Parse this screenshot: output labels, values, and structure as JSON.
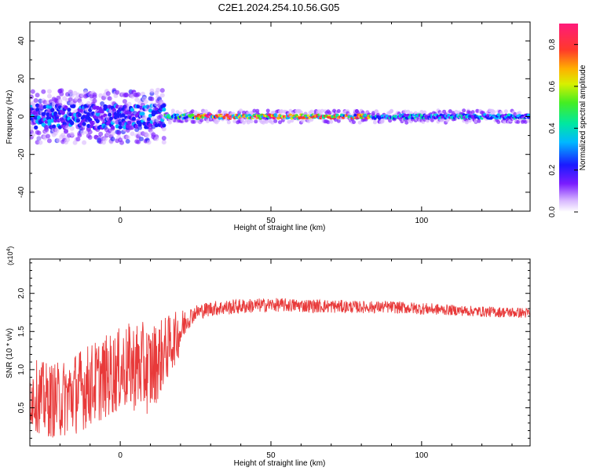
{
  "title": "C2E1.2024.254.10.56.G05",
  "chart_data": [
    {
      "type": "heatmap",
      "xlabel": "Height of straight line (km)",
      "ylabel": "Frequency (Hz)",
      "xlim": [
        -30,
        136
      ],
      "ylim": [
        -50,
        50
      ],
      "xticks": [
        0,
        50,
        100
      ],
      "yticks": [
        -40,
        -20,
        0,
        20,
        40
      ],
      "colorbar": {
        "label": "Normalized spectral amplitude",
        "range": [
          0,
          0.9
        ],
        "ticks": [
          0.0,
          0.2,
          0.4,
          0.6,
          0.8
        ]
      },
      "ridge": {
        "center_frequency": 0,
        "segments": [
          {
            "x": [
              -30,
              15
            ],
            "half_width": 3,
            "peak_amplitude": 0.4
          },
          {
            "x": [
              15,
              25
            ],
            "half_width": 2,
            "peak_amplitude": 0.6
          },
          {
            "x": [
              25,
              84
            ],
            "half_width": 2,
            "peak_amplitude": 0.9
          },
          {
            "x": [
              84,
              136
            ],
            "half_width": 2,
            "peak_amplitude": 0.45
          }
        ]
      }
    },
    {
      "type": "line",
      "xlabel": "Height of straight line (km)",
      "ylabel": "SNR (10 * v/v)",
      "y_multiplier": "(x10",
      "y_multiplier_exponent": "4",
      "xlim": [
        -30,
        136
      ],
      "ylim": [
        0,
        2.45
      ],
      "xticks": [
        0,
        50,
        100
      ],
      "yticks": [
        0.5,
        1.0,
        1.5,
        2.0
      ],
      "color": "#e83a3a",
      "envelope": {
        "x": [
          -30,
          -25,
          -20,
          -15,
          -10,
          -5,
          0,
          5,
          10,
          15,
          18,
          20,
          22,
          25,
          30,
          40,
          50,
          60,
          70,
          80,
          90,
          100,
          110,
          120,
          130,
          136
        ],
        "mean": [
          0.7,
          0.6,
          0.6,
          0.7,
          0.8,
          0.9,
          1.0,
          1.05,
          1.0,
          1.25,
          1.4,
          1.5,
          1.65,
          1.75,
          1.8,
          1.83,
          1.85,
          1.84,
          1.83,
          1.82,
          1.82,
          1.8,
          1.78,
          1.76,
          1.75,
          1.74
        ],
        "spread": [
          0.45,
          0.5,
          0.5,
          0.55,
          0.55,
          0.55,
          0.55,
          0.6,
          0.6,
          0.45,
          0.35,
          0.3,
          0.15,
          0.1,
          0.1,
          0.1,
          0.09,
          0.09,
          0.09,
          0.08,
          0.08,
          0.08,
          0.07,
          0.07,
          0.07,
          0.07
        ]
      }
    }
  ]
}
